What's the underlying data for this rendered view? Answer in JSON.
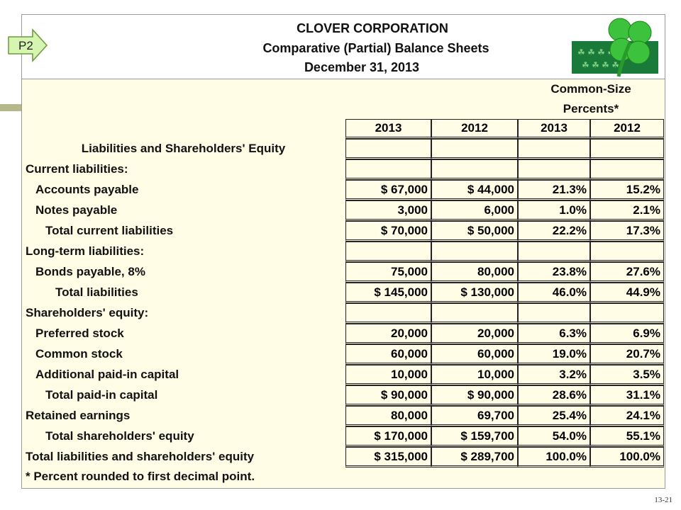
{
  "header": {
    "badge": "P2",
    "title": "CLOVER CORPORATION",
    "subtitle": "Comparative (Partial) Balance Sheets",
    "date": "December 31, 2013"
  },
  "table": {
    "group_header": "Common-Size Percents*",
    "columns": [
      "2013",
      "2012",
      "2013",
      "2012"
    ],
    "rows": [
      {
        "label": "Liabilities and Shareholders' Equity"
      },
      {
        "label": "Current liabilities:"
      },
      {
        "label": "Accounts payable",
        "cells": [
          "$ 67,000",
          "$ 44,000",
          "21.3%",
          "15.2%"
        ]
      },
      {
        "label": "Notes payable",
        "cells": [
          "3,000",
          "6,000",
          "1.0%",
          "2.1%"
        ]
      },
      {
        "label": "Total current liabilities",
        "cells": [
          "$ 70,000",
          "$ 50,000",
          "22.2%",
          "17.3%"
        ]
      },
      {
        "label": "Long-term liabilities:"
      },
      {
        "label": "Bonds payable, 8%",
        "cells": [
          "75,000",
          "80,000",
          "23.8%",
          "27.6%"
        ]
      },
      {
        "label": "Total liabilities",
        "cells": [
          "$ 145,000",
          "$ 130,000",
          "46.0%",
          "44.9%"
        ]
      },
      {
        "label": "Shareholders' equity:"
      },
      {
        "label": "Preferred stock",
        "cells": [
          "20,000",
          "20,000",
          "6.3%",
          "6.9%"
        ]
      },
      {
        "label": "Common stock",
        "cells": [
          "60,000",
          "60,000",
          "19.0%",
          "20.7%"
        ]
      },
      {
        "label": "Additional paid-in capital",
        "cells": [
          "10,000",
          "10,000",
          "3.2%",
          "3.5%"
        ]
      },
      {
        "label": "Total paid-in capital",
        "cells": [
          "$ 90,000",
          "$ 90,000",
          "28.6%",
          "31.1%"
        ]
      },
      {
        "label": "Retained earnings",
        "cells": [
          "80,000",
          "69,700",
          "25.4%",
          "24.1%"
        ]
      },
      {
        "label": "Total shareholders' equity",
        "cells": [
          "$ 170,000",
          "$ 159,700",
          "54.0%",
          "55.1%"
        ]
      },
      {
        "label": "Total liabilities and shareholders' equity",
        "cells": [
          "$ 315,000",
          "$ 289,700",
          "100.0%",
          "100.0%"
        ]
      }
    ],
    "footnote": "* Percent rounded to first decimal point."
  },
  "footer": {
    "page": "13-21"
  }
}
